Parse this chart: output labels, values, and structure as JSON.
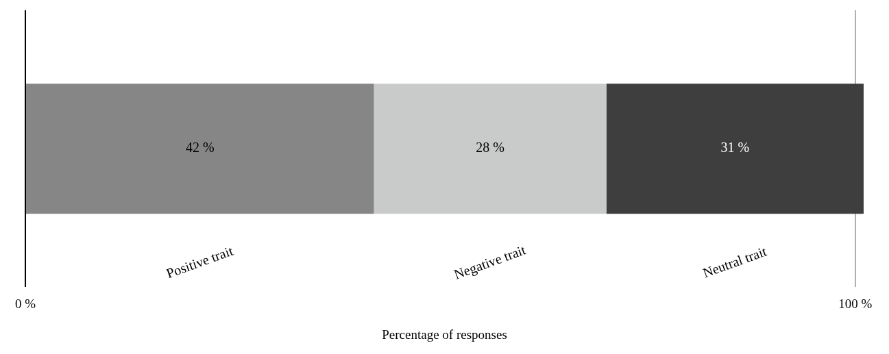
{
  "chart_data": {
    "type": "bar",
    "orientation": "horizontal",
    "stacked": true,
    "xlabel": "Percentage of responses",
    "categories": [
      null
    ],
    "series": [
      {
        "name": "Positive trait",
        "color": "#858685",
        "values": [
          42
        ],
        "value_labels": [
          "42 %"
        ]
      },
      {
        "name": "Negative trait",
        "color": "#c9cbca",
        "values": [
          28
        ],
        "value_labels": [
          "28 %"
        ]
      },
      {
        "name": "Neutral trait",
        "color": "#3d3e3d",
        "values": [
          31
        ],
        "value_labels": [
          "31 %"
        ]
      }
    ],
    "xlim": [
      0,
      101
    ],
    "xticks": [
      {
        "value": 0,
        "label": "0 %"
      },
      {
        "value": 100,
        "label": "100 %"
      }
    ],
    "grid": "x",
    "legend": false
  }
}
